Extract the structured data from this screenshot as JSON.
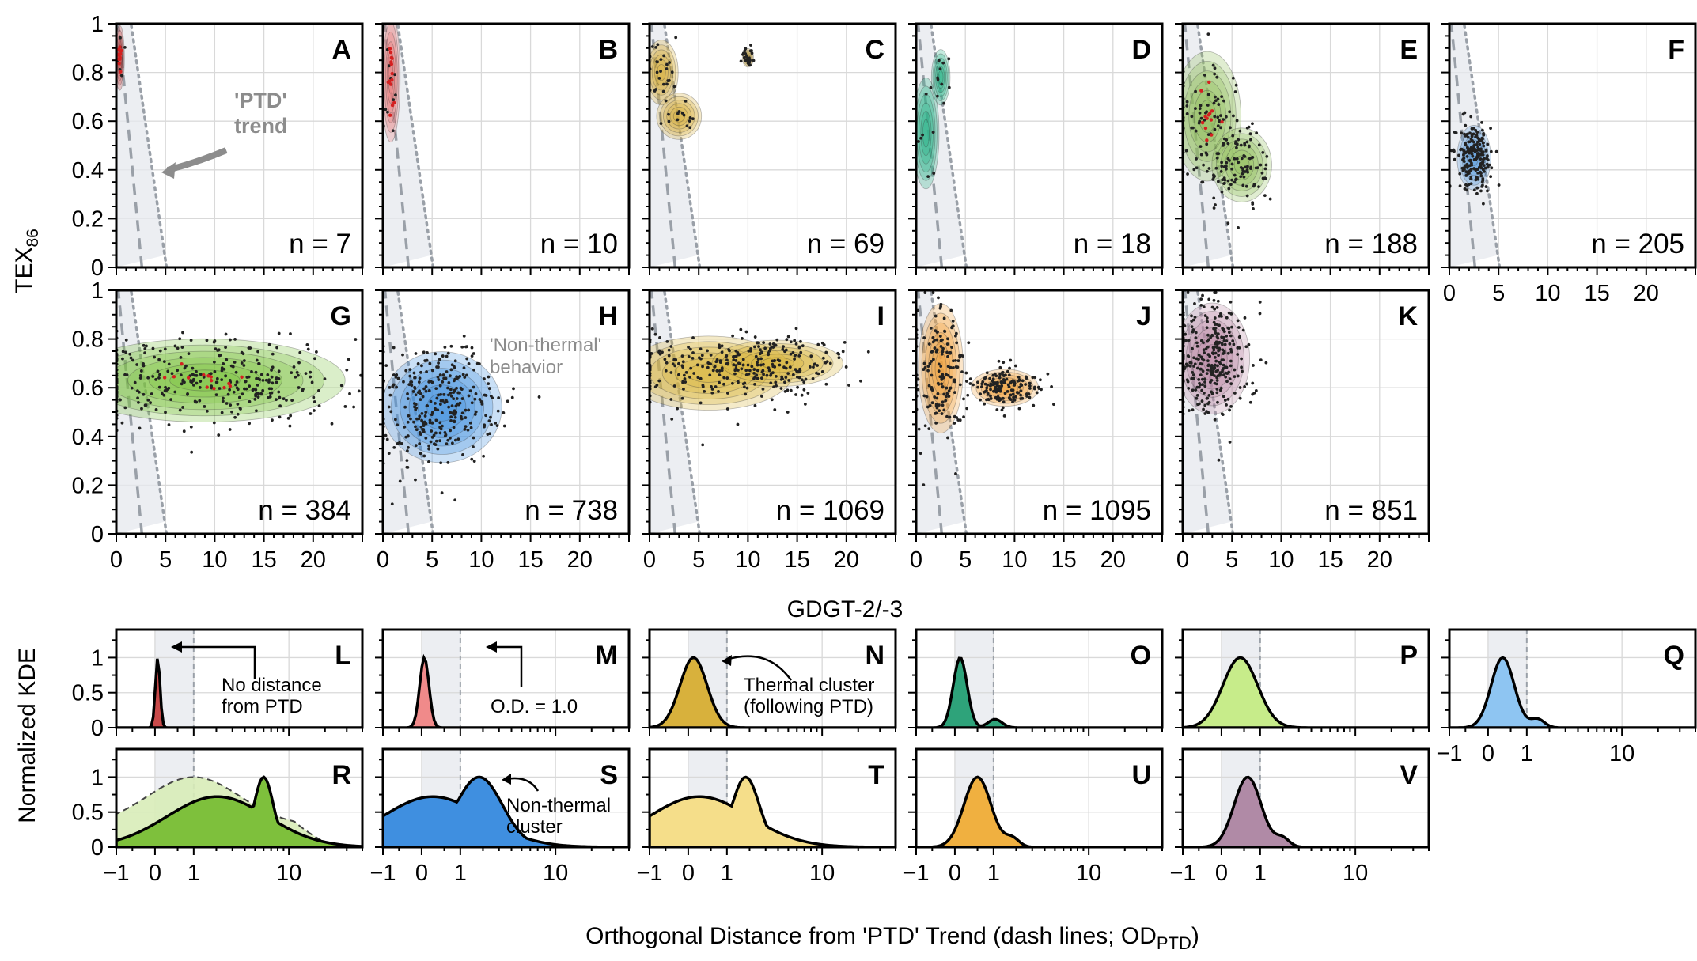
{
  "colors": {
    "A": "#c94a4a",
    "B": "#e87b7b",
    "C": "#d8b13c",
    "D": "#2cb28a",
    "E": "#8fbe5a",
    "F": "#5e9fe0",
    "G": "#79c13c",
    "H": "#3f8fe0",
    "I": "#d9b238",
    "J": "#f0a23c",
    "K": "#b98aa6",
    "L": "#c94a4a",
    "M": "#f08a8a",
    "N": "#d8b13c",
    "O": "#2ea37a",
    "P": "#c7ec8a",
    "Q": "#8ec5f2",
    "R": "#7ec03c",
    "S": "#3f8fe0",
    "T": "#f5de8a",
    "U": "#f0b040",
    "V": "#b08aa6"
  },
  "labels": {
    "y_top": "TEX",
    "y_top_sub": "86",
    "x_top": "GDGT-2/-3",
    "y_bottom": "Normalized KDE",
    "x_bottom": "Orthogonal Distance from 'PTD' Trend (dash lines; OD",
    "x_bottom_sub": "PTD",
    "x_bottom_end": ")"
  },
  "annotations": {
    "ptd_line1": "'PTD'",
    "ptd_line2": "trend",
    "nonthermal_line1": "'Non-thermal'",
    "nonthermal_line2": "behavior",
    "nodist_line1": "No distance",
    "nodist_line2": "from PTD",
    "od1": "O.D. = 1.0",
    "thermal_line1": "Thermal cluster",
    "thermal_line2": "(following PTD)",
    "nonthermal_cluster_line1": "Non-thermal",
    "nonthermal_cluster_line2": "cluster"
  },
  "chart_data": [
    {
      "type": "scatter",
      "name": "scatter-density panels",
      "xlabel": "GDGT-2/-3",
      "ylabel": "TEX86",
      "xlim": [
        0,
        25
      ],
      "ylim": [
        0,
        1
      ],
      "x_ticks": [
        "0",
        "5",
        "10",
        "15",
        "20"
      ],
      "y_ticks": [
        "0",
        "0.2",
        "0.4",
        "0.6",
        "0.8",
        "1"
      ],
      "grid": true,
      "reference_lines": "dashed 'PTD' trend with dotted envelope (grey band)",
      "panels": [
        {
          "letter": "A",
          "count": "n = 7",
          "centroid": [
            0.4,
            0.82
          ]
        },
        {
          "letter": "B",
          "count": "n = 10",
          "centroid": [
            0.8,
            0.78
          ]
        },
        {
          "letter": "C",
          "count": "n = 69",
          "centroid": [
            1.2,
            0.8
          ]
        },
        {
          "letter": "D",
          "count": "n = 18",
          "centroid": [
            1.0,
            0.55
          ]
        },
        {
          "letter": "E",
          "count": "n = 188",
          "centroid": [
            2.5,
            0.62
          ]
        },
        {
          "letter": "F",
          "count": "n = 205",
          "centroid": [
            2.5,
            0.45
          ]
        },
        {
          "letter": "G",
          "count": "n = 384",
          "centroid": [
            10,
            0.63
          ]
        },
        {
          "letter": "H",
          "count": "n = 738",
          "centroid": [
            6,
            0.52
          ]
        },
        {
          "letter": "I",
          "count": "n = 1069",
          "centroid": [
            6,
            0.66
          ]
        },
        {
          "letter": "J",
          "count": "n = 1095",
          "centroid": [
            2.5,
            0.68
          ]
        },
        {
          "letter": "K",
          "count": "n = 851",
          "centroid": [
            3,
            0.72
          ]
        }
      ]
    },
    {
      "type": "area",
      "name": "normalized KDE panels",
      "xlabel": "Orthogonal Distance from 'PTD' Trend (dash lines; OD PTD)",
      "ylabel": "Normalized KDE",
      "x_scale": "symmetric log",
      "x_ticks": [
        "−1",
        "0",
        "1",
        "10"
      ],
      "y_ticks": [
        "0",
        "0.5",
        "1"
      ],
      "ylim": [
        0,
        1.4
      ],
      "shaded_range": [
        0,
        1
      ],
      "panels": [
        {
          "letter": "L",
          "peak_od": 0.05
        },
        {
          "letter": "M",
          "peak_od": 0.05
        },
        {
          "letter": "N",
          "peak_od": 0.1
        },
        {
          "letter": "O",
          "peak_od": 0.1
        },
        {
          "letter": "P",
          "peak_od": 0.4
        },
        {
          "letter": "Q",
          "peak_od": 0.3
        },
        {
          "letter": "R",
          "peak_od": 6
        },
        {
          "letter": "S",
          "peak_od": 1.8
        },
        {
          "letter": "T",
          "peak_od": 1.8
        },
        {
          "letter": "U",
          "peak_od": 0.5
        },
        {
          "letter": "V",
          "peak_od": 0.6
        }
      ]
    }
  ]
}
